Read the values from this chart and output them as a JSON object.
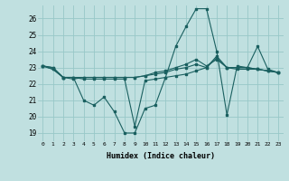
{
  "xlabel": "Humidex (Indice chaleur)",
  "bg_color": "#c0e0e0",
  "grid_color": "#98c8c8",
  "line_color": "#1a6060",
  "xlim": [
    -0.5,
    23.5
  ],
  "ylim": [
    18.5,
    26.8
  ],
  "xticks": [
    0,
    1,
    2,
    3,
    4,
    5,
    6,
    7,
    8,
    9,
    10,
    11,
    12,
    13,
    14,
    15,
    16,
    17,
    18,
    19,
    20,
    21,
    22,
    23
  ],
  "yticks": [
    19,
    20,
    21,
    22,
    23,
    24,
    25,
    26
  ],
  "lines": [
    [
      23.1,
      23.0,
      22.4,
      22.4,
      21.0,
      20.7,
      21.2,
      20.3,
      19.0,
      19.0,
      20.5,
      20.7,
      22.4,
      24.3,
      25.5,
      26.6,
      26.6,
      24.0,
      20.1,
      23.1,
      23.0,
      24.3,
      22.9,
      22.7
    ],
    [
      23.1,
      23.0,
      22.4,
      22.4,
      22.3,
      22.3,
      22.3,
      22.3,
      22.3,
      19.4,
      22.2,
      22.3,
      22.4,
      22.5,
      22.6,
      22.8,
      23.0,
      23.7,
      23.0,
      23.0,
      23.0,
      22.9,
      22.8,
      22.7
    ],
    [
      23.1,
      22.9,
      22.4,
      22.4,
      22.4,
      22.4,
      22.4,
      22.4,
      22.4,
      22.4,
      22.5,
      22.6,
      22.7,
      22.9,
      23.0,
      23.2,
      23.0,
      23.6,
      23.0,
      23.0,
      23.0,
      22.9,
      22.8,
      22.7
    ],
    [
      23.1,
      22.9,
      22.4,
      22.3,
      22.4,
      22.4,
      22.4,
      22.4,
      22.4,
      22.4,
      22.5,
      22.7,
      22.8,
      23.0,
      23.2,
      23.5,
      23.1,
      23.5,
      23.0,
      22.9,
      22.9,
      22.9,
      22.8,
      22.7
    ]
  ]
}
